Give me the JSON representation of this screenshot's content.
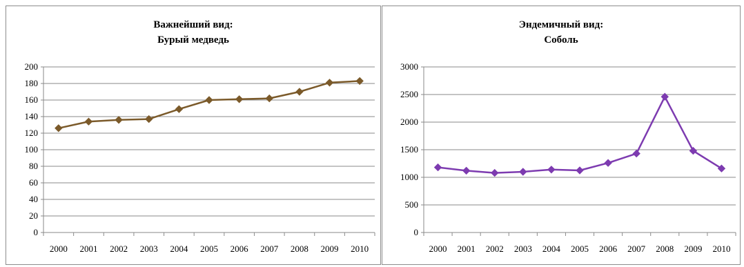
{
  "chart_data": [
    {
      "type": "line",
      "title": "Важнейший вид:",
      "subtitle": "Бурый медведь",
      "categories": [
        "2000",
        "2001",
        "2002",
        "2003",
        "2004",
        "2005",
        "2006",
        "2007",
        "2008",
        "2009",
        "2010"
      ],
      "series": [
        {
          "values": [
            126,
            134,
            136,
            137,
            149,
            160,
            161,
            162,
            170,
            181,
            183
          ],
          "color": "#7b5a2a",
          "marker": "diamond"
        }
      ],
      "ylim": [
        0,
        200
      ],
      "yticks": [
        0,
        20,
        40,
        60,
        80,
        100,
        120,
        140,
        160,
        180,
        200
      ],
      "grid": true,
      "legend": "none"
    },
    {
      "type": "line",
      "title": "Эндемичный вид:",
      "subtitle": "Соболь",
      "categories": [
        "2000",
        "2001",
        "2002",
        "2003",
        "2004",
        "2005",
        "2006",
        "2007",
        "2008",
        "2009",
        "2010"
      ],
      "series": [
        {
          "values": [
            1180,
            1120,
            1080,
            1100,
            1140,
            1125,
            1260,
            1430,
            2460,
            1480,
            1160
          ],
          "color": "#7d3bb0",
          "marker": "diamond"
        }
      ],
      "ylim": [
        0,
        3000
      ],
      "yticks": [
        0,
        500,
        1000,
        1500,
        2000,
        2500,
        3000
      ],
      "grid": true,
      "legend": "none"
    }
  ]
}
